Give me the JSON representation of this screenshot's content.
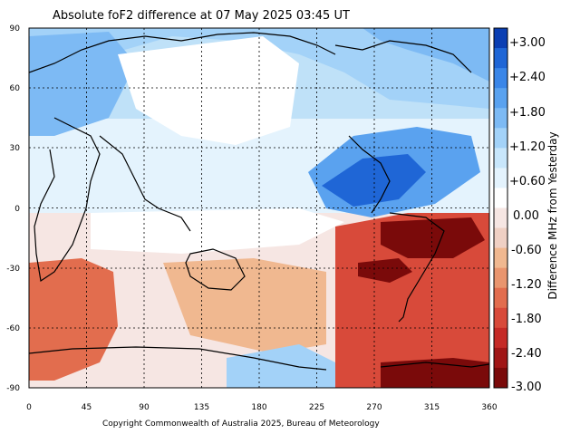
{
  "title": "Absolute foF2 difference at 07 May 2025 03:45 UT",
  "copyright": "Copyright Commonwealth of Australia 2025, Bureau of Meteorology",
  "colorbar": {
    "label": "Difference MHz from Yesterday",
    "ticks": [
      "+3.00",
      "+2.40",
      "+1.80",
      "+1.20",
      "+0.60",
      "0.00",
      "-0.60",
      "-1.20",
      "-1.80",
      "-2.40",
      "-3.00"
    ],
    "colors": [
      "#0b3fb3",
      "#1f66d6",
      "#3a86e8",
      "#5aa2ef",
      "#7dbaf4",
      "#a3d2f8",
      "#c8e6fb",
      "#e4f3fd",
      "#ffffff",
      "#f6e6e3",
      "#efd0c4",
      "#f0b890",
      "#e9956e",
      "#e26d4e",
      "#d84a3a",
      "#c52a26",
      "#a01616",
      "#7a0a0a"
    ]
  },
  "x_axis": {
    "ticks": [
      "0",
      "45",
      "90",
      "135",
      "180",
      "225",
      "270",
      "315",
      "360"
    ]
  },
  "y_axis": {
    "ticks": [
      "90",
      "60",
      "30",
      "0",
      "-30",
      "-60",
      "-90"
    ]
  },
  "map_data": {
    "projection": "equirectangular",
    "lon_range": [
      0,
      360
    ],
    "lat_range": [
      -90,
      90
    ],
    "regions": [
      {
        "name": "north-pacific-positive",
        "sign": "positive"
      },
      {
        "name": "south-atlantic-negative",
        "sign": "negative"
      },
      {
        "name": "south-indian-negative",
        "sign": "negative"
      },
      {
        "name": "south-pacific-negative",
        "sign": "negative"
      }
    ]
  }
}
